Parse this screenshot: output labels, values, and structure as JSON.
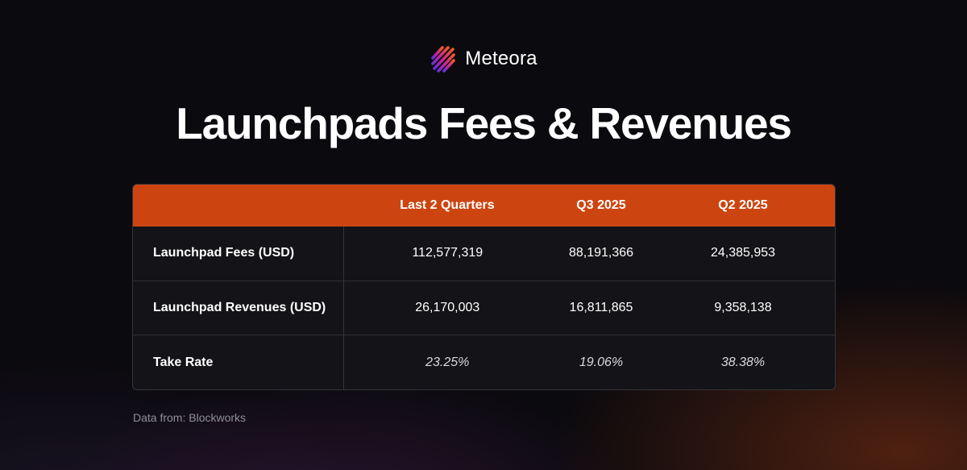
{
  "brand": {
    "name": "Meteora",
    "logo_icon": "meteora-logo-icon",
    "accent_colors": [
      "#f25a1f",
      "#c7269b",
      "#6a2fd8"
    ]
  },
  "title": "Launchpads Fees & Revenues",
  "table": {
    "header_color": "#cc4510",
    "columns": [
      "",
      "Last 2 Quarters",
      "Q3 2025",
      "Q2 2025"
    ],
    "rows": [
      {
        "label": "Launchpad Fees (USD)",
        "values": [
          "112,577,319",
          "88,191,366",
          "24,385,953"
        ]
      },
      {
        "label": "Launchpad Revenues (USD)",
        "values": [
          "26,170,003",
          "16,811,865",
          "9,358,138"
        ]
      },
      {
        "label": "Take Rate",
        "values": [
          "23.25%",
          "19.06%",
          "38.38%"
        ]
      }
    ]
  },
  "source": "Data from: Blockworks"
}
